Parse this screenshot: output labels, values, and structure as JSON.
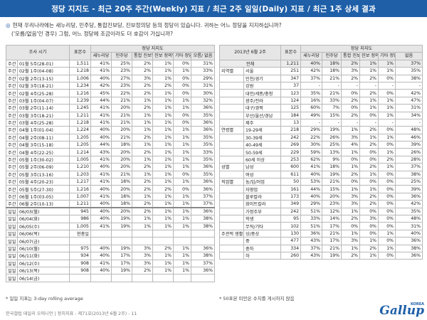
{
  "title": "정당 지지도 - 최근 20주 주간(Weekly) 지표 / 최근 2주 일일(Daily) 지표 / 최근 1주 상세 결과",
  "question_line1": "현재 우리나라에는 새누리당, 민주당, 통합진보당, 진보정의당 등의 정당이 있습니다. 귀하는 어느 정당을 지지하십니까?",
  "question_line2": "('모름/없음'인 경우) 그럼, 어느 정당에 조금이라도 더 호감이 가십니까?",
  "left": {
    "h_period": "조사 시기",
    "h_n": "표본수",
    "h_group": "정당 지지도",
    "cols": [
      "새누리당",
      "민주당",
      "통합 진보당",
      "진보 정의당",
      "기타 정당",
      "모름/ 없음"
    ],
    "weekly": [
      [
        "주간",
        "01월 5주(28-01)",
        "1,511",
        "41%",
        "25%",
        "2%",
        "1%",
        "0%",
        "31%"
      ],
      [
        "주간",
        "02월 1주(04-08)",
        "1,218",
        "41%",
        "23%",
        "2%",
        "1%",
        "1%",
        "33%"
      ],
      [
        "주간",
        "02월 2주(13-15)",
        "1,006",
        "40%",
        "27%",
        "3%",
        "1%",
        "0%",
        "29%"
      ],
      [
        "주간",
        "02월 3주(18-21)",
        "1,234",
        "42%",
        "23%",
        "2%",
        "2%",
        "0%",
        "31%"
      ],
      [
        "주간",
        "02월 4주(25-28)",
        "1,216",
        "45%",
        "22%",
        "2%",
        "1%",
        "0%",
        "30%"
      ],
      [
        "주간",
        "03월 1주(04-07)",
        "1,239",
        "44%",
        "21%",
        "1%",
        "1%",
        "1%",
        "32%"
      ],
      [
        "주간",
        "03월 2주(11-14)",
        "1,245",
        "41%",
        "20%",
        "2%",
        "1%",
        "1%",
        "36%"
      ],
      [
        "주간",
        "03월 3주(18-21)",
        "1,211",
        "41%",
        "21%",
        "1%",
        "1%",
        "0%",
        "35%"
      ],
      [
        "주간",
        "03월 4주(25-28)",
        "1,218",
        "41%",
        "21%",
        "1%",
        "1%",
        "0%",
        "36%"
      ],
      [
        "주간",
        "04월 1주(01-04)",
        "1,224",
        "40%",
        "20%",
        "1%",
        "1%",
        "1%",
        "36%"
      ],
      [
        "주간",
        "04월 2주(08-11)",
        "1,205",
        "40%",
        "21%",
        "2%",
        "1%",
        "1%",
        "35%"
      ],
      [
        "주간",
        "04월 3주(15-18)",
        "1,205",
        "44%",
        "18%",
        "1%",
        "1%",
        "1%",
        "35%"
      ],
      [
        "주간",
        "04월 4주(22-25)",
        "1,214",
        "43%",
        "20%",
        "2%",
        "1%",
        "1%",
        "33%"
      ],
      [
        "주간",
        "05월 1주(30-02)",
        "1,005",
        "41%",
        "20%",
        "1%",
        "1%",
        "1%",
        "35%"
      ],
      [
        "주간",
        "05월 2주(06-09)",
        "1,210",
        "40%",
        "20%",
        "2%",
        "1%",
        "1%",
        "36%"
      ],
      [
        "주간",
        "05월 3주(13-16)",
        "1,203",
        "41%",
        "21%",
        "1%",
        "1%",
        "0%",
        "35%"
      ],
      [
        "주간",
        "05월 4주(20-23)",
        "1,217",
        "41%",
        "18%",
        "2%",
        "1%",
        "1%",
        "36%"
      ],
      [
        "주간",
        "05월 5주(27-30)",
        "1,216",
        "40%",
        "20%",
        "2%",
        "2%",
        "0%",
        "36%"
      ],
      [
        "주간",
        "06월 1주(03-05)",
        "1,007",
        "41%",
        "18%",
        "1%",
        "1%",
        "1%",
        "37%"
      ],
      [
        "주간",
        "06월 2주(10-13)",
        "1,211",
        "40%",
        "18%",
        "2%",
        "1%",
        "1%",
        "37%"
      ]
    ],
    "daily": [
      [
        "일일",
        "06/03(월)",
        "945",
        "40%",
        "20%",
        "2%",
        "1%",
        "1%",
        "36%"
      ],
      [
        "일일",
        "06/04(화)",
        "986",
        "40%",
        "19%",
        "1%",
        "1%",
        "1%",
        "38%"
      ],
      [
        "일일",
        "06/05(수)",
        "1,005",
        "41%",
        "19%",
        "1%",
        "1%",
        "1%",
        "38%"
      ],
      [
        "일일",
        "06/06(목)",
        "현충일",
        "",
        "",
        "",
        "",
        "",
        ""
      ],
      [
        "일일",
        "06/07(금)",
        "",
        "",
        "",
        "",
        "",
        "",
        ""
      ],
      [
        "일일",
        "06/10(월)",
        "975",
        "40%",
        "19%",
        "3%",
        "2%",
        "1%",
        "36%"
      ],
      [
        "일일",
        "06/11(화)",
        "934",
        "40%",
        "17%",
        "3%",
        "1%",
        "1%",
        "38%"
      ],
      [
        "일일",
        "06/12(수)",
        "908",
        "41%",
        "17%",
        "3%",
        "1%",
        "1%",
        "37%"
      ],
      [
        "일일",
        "06/13(목)",
        "908",
        "40%",
        "19%",
        "2%",
        "1%",
        "1%",
        "36%"
      ],
      [
        "일일",
        "06/14(금)",
        "",
        "",
        "",
        "",
        "",
        "",
        ""
      ]
    ]
  },
  "right": {
    "h_week": "2013년 6월 2주",
    "h_n": "표본수",
    "h_group": "정당 지지도",
    "cols": [
      "새누리당",
      "민주당",
      "통합 진보당",
      "진보 정의당",
      "기타 정당",
      "없음"
    ],
    "total": [
      "전체",
      "",
      "1,211",
      "40%",
      "18%",
      "2%",
      "1%",
      "1%",
      "37%"
    ],
    "rows": [
      [
        "지역별",
        "서울",
        "251",
        "42%",
        "18%",
        "3%",
        "1%",
        "1%",
        "35%"
      ],
      [
        "",
        "인천/경기",
        "347",
        "37%",
        "21%",
        "2%",
        "2%",
        "0%",
        "38%"
      ],
      [
        "",
        "강원",
        "37",
        "-",
        "-",
        "-",
        "-",
        "-",
        "-"
      ],
      [
        "",
        "대전/세종/충청",
        "123",
        "35%",
        "21%",
        "0%",
        "2%",
        "0%",
        "42%"
      ],
      [
        "",
        "광주/전라",
        "124",
        "16%",
        "33%",
        "2%",
        "1%",
        "1%",
        "47%"
      ],
      [
        "",
        "대구/경북",
        "125",
        "60%",
        "7%",
        "0%",
        "1%",
        "1%",
        "31%"
      ],
      [
        "",
        "부산/울산/경남",
        "184",
        "49%",
        "15%",
        "2%",
        "0%",
        "1%",
        "34%"
      ],
      [
        "",
        "제주",
        "13",
        "-",
        "-",
        "-",
        "-",
        "-",
        "-"
      ],
      [
        "연령별",
        "19-29세",
        "218",
        "29%",
        "19%",
        "1%",
        "2%",
        "0%",
        "48%"
      ],
      [
        "",
        "30-39세",
        "242",
        "22%",
        "26%",
        "3%",
        "1%",
        "1%",
        "46%"
      ],
      [
        "",
        "40-49세",
        "269",
        "30%",
        "25%",
        "4%",
        "2%",
        "0%",
        "39%"
      ],
      [
        "",
        "50-59세",
        "229",
        "59%",
        "13%",
        "1%",
        "0%",
        "1%",
        "26%"
      ],
      [
        "",
        "60세 이상",
        "253",
        "62%",
        "9%",
        "0%",
        "0%",
        "2%",
        "28%"
      ],
      [
        "성별",
        "남성",
        "600",
        "41%",
        "18%",
        "1%",
        "2%",
        "1%",
        "37%"
      ],
      [
        "",
        "여성",
        "611",
        "40%",
        "19%",
        "2%",
        "1%",
        "0%",
        "38%"
      ],
      [
        "직업별",
        "농/임/어업",
        "50",
        "53%",
        "21%",
        "0%",
        "0%",
        "0%",
        "25%"
      ],
      [
        "",
        "자영업",
        "161",
        "44%",
        "15%",
        "1%",
        "1%",
        "0%",
        "39%"
      ],
      [
        "",
        "블루칼라",
        "173",
        "40%",
        "20%",
        "3%",
        "2%",
        "0%",
        "36%"
      ],
      [
        "",
        "화이트칼라",
        "349",
        "29%",
        "23%",
        "3%",
        "2%",
        "0%",
        "42%"
      ],
      [
        "",
        "가정주부",
        "242",
        "51%",
        "12%",
        "1%",
        "0%",
        "0%",
        "35%"
      ],
      [
        "",
        "학생",
        "95",
        "33%",
        "14%",
        "2%",
        "3%",
        "0%",
        "48%"
      ],
      [
        "",
        "무직/기타",
        "102",
        "51%",
        "17%",
        "0%",
        "0%",
        "0%",
        "31%"
      ],
      [
        "주관적 생활수준별",
        "상/중상",
        "130",
        "36%",
        "21%",
        "1%",
        "0%",
        "1%",
        "40%"
      ],
      [
        "",
        "중",
        "477",
        "43%",
        "17%",
        "3%",
        "1%",
        "0%",
        "36%"
      ],
      [
        "",
        "중하",
        "334",
        "37%",
        "21%",
        "1%",
        "2%",
        "1%",
        "38%"
      ],
      [
        "",
        "하",
        "260",
        "43%",
        "19%",
        "2%",
        "1%",
        "0%",
        "36%"
      ]
    ]
  },
  "note_left": "* 일일 지표는 3-day rolling average",
  "note_right": "* 50표본 미만은 수치를 게시하지 않음",
  "footer": "한국갤럽 데일리 오피니언 | 정치지표 - 제71호(2013년 6월 2주) - 11",
  "logo_small": "KOREA",
  "logo_word": "Gallup"
}
